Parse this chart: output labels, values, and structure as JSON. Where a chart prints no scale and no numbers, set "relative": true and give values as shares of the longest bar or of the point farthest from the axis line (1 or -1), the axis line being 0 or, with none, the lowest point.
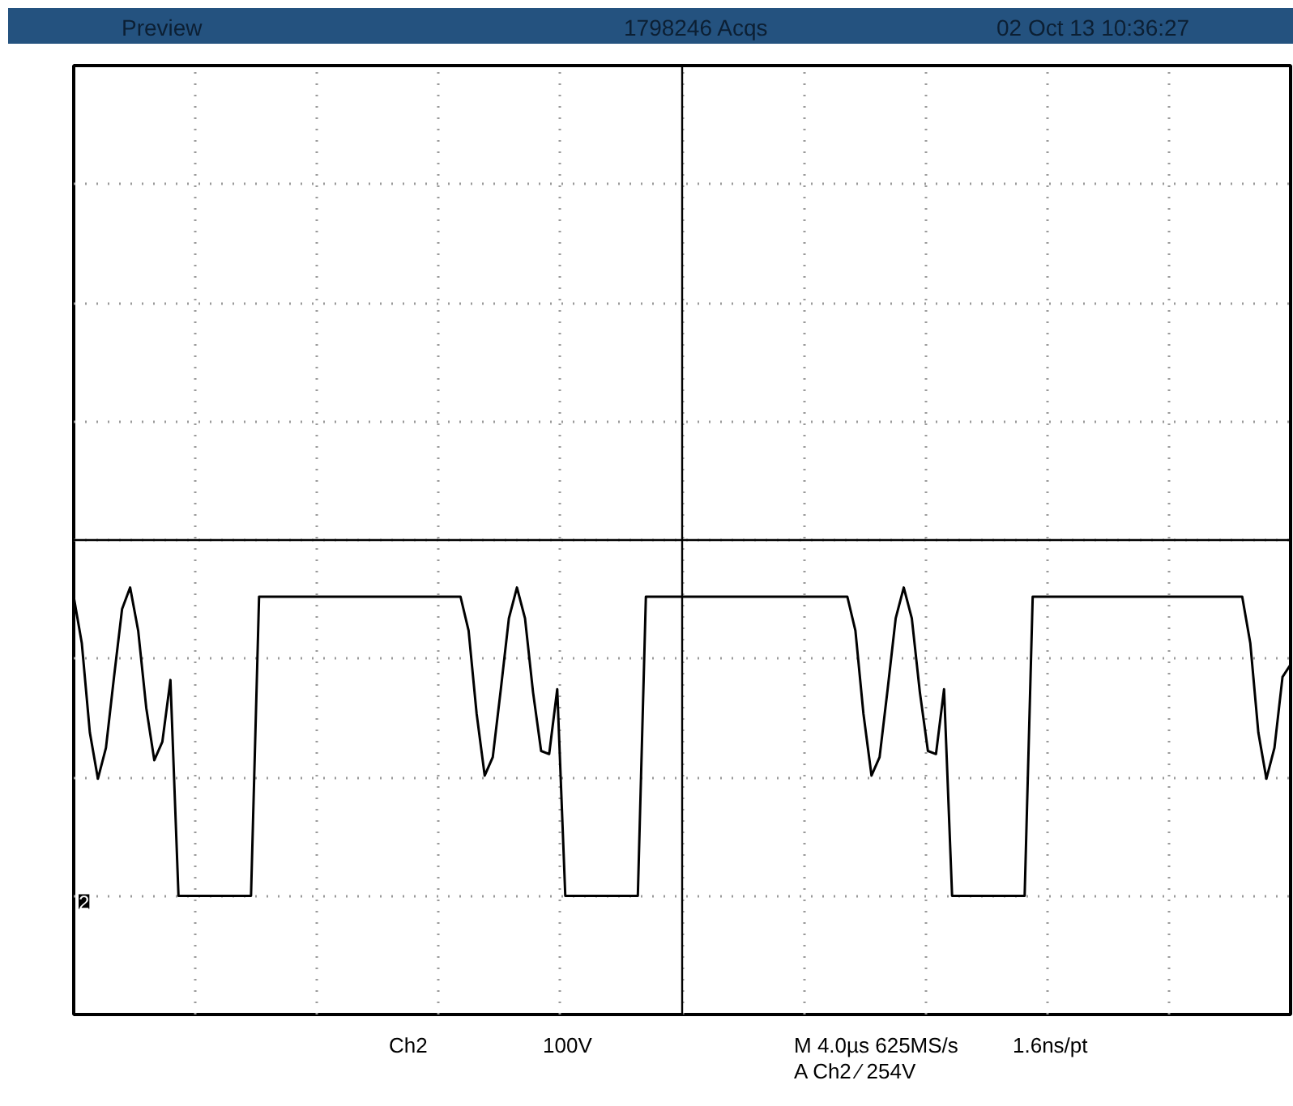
{
  "chart_data": {
    "type": "line",
    "relative": true,
    "grid": true,
    "line_style": "solid",
    "marker": "none",
    "categories": [
      null,
      null,
      null,
      null,
      null,
      null,
      null,
      null,
      null,
      null,
      null,
      null,
      null,
      null,
      null,
      null,
      null,
      null,
      null,
      null,
      null,
      null,
      null,
      null,
      null,
      null,
      null,
      null,
      null,
      null,
      null,
      null,
      null,
      null,
      null,
      null,
      null,
      null,
      null,
      null,
      null,
      null,
      null,
      null,
      null,
      null,
      null,
      null,
      null,
      null,
      null,
      null,
      null,
      null,
      null,
      null,
      null,
      null,
      null,
      null,
      null,
      null,
      null,
      null,
      null,
      null,
      null,
      null,
      null,
      null,
      null,
      null,
      null,
      null,
      null,
      null,
      null,
      null,
      null,
      null,
      null,
      null,
      null,
      null,
      null,
      null,
      null,
      null,
      null,
      null,
      null,
      null,
      null,
      null,
      null,
      null,
      null,
      null,
      null,
      null,
      null,
      null,
      null,
      null,
      null,
      null,
      null,
      null,
      null,
      null,
      null,
      null,
      null,
      null,
      null,
      null,
      null,
      null,
      null,
      null,
      null,
      null,
      null,
      null,
      null,
      null,
      null,
      null,
      null,
      null,
      null,
      null,
      null,
      null,
      null,
      null,
      null,
      null,
      null,
      null,
      null,
      null,
      null,
      null,
      null,
      null,
      null,
      null,
      null,
      null,
      null,
      null
    ],
    "series": [
      {
        "color": "#000000",
        "values": [
          0.97,
          0.82,
          0.53,
          0.38,
          0.48,
          0.71,
          0.93,
          1.0,
          0.86,
          0.61,
          0.44,
          0.5,
          0.7,
          0,
          0,
          0,
          0,
          0,
          0,
          0,
          0,
          0,
          0,
          0.97,
          0.97,
          0.97,
          0.97,
          0.97,
          0.97,
          0.97,
          0.97,
          0.97,
          0.97,
          0.97,
          0.97,
          0.97,
          0.97,
          0.97,
          0.97,
          0.97,
          0.97,
          0.97,
          0.97,
          0.97,
          0.97,
          0.97,
          0.97,
          0.97,
          0.97,
          0.86,
          0.59,
          0.39,
          0.45,
          0.67,
          0.9,
          1.0,
          0.9,
          0.66,
          0.47,
          0.46,
          0.67,
          0,
          0,
          0,
          0,
          0,
          0,
          0,
          0,
          0,
          0,
          0.97,
          0.97,
          0.97,
          0.97,
          0.97,
          0.97,
          0.97,
          0.97,
          0.97,
          0.97,
          0.97,
          0.97,
          0.97,
          0.97,
          0.97,
          0.97,
          0.97,
          0.97,
          0.97,
          0.97,
          0.97,
          0.97,
          0.97,
          0.97,
          0.97,
          0.97,
          0.86,
          0.59,
          0.39,
          0.45,
          0.67,
          0.9,
          1.0,
          0.9,
          0.66,
          0.47,
          0.46,
          0.67,
          0,
          0,
          0,
          0,
          0,
          0,
          0,
          0,
          0,
          0,
          0.97,
          0.97,
          0.97,
          0.97,
          0.97,
          0.97,
          0.97,
          0.97,
          0.97,
          0.97,
          0.97,
          0.97,
          0.97,
          0.97,
          0.97,
          0.97,
          0.97,
          0.97,
          0.97,
          0.97,
          0.97,
          0.97,
          0.97,
          0.97,
          0.97,
          0.97,
          0.97,
          0.82,
          0.53,
          0.38,
          0.48,
          0.71,
          0.75
        ]
      }
    ],
    "annotations": [
      "Preview",
      "1798246 Acqs",
      "02 Oct 13 10:36:27",
      "Ch2",
      "100V",
      "M 4.0µs 625MS/s",
      "1.6ns/pt",
      "A Ch2 ∕ 254V",
      "2"
    ]
  }
}
